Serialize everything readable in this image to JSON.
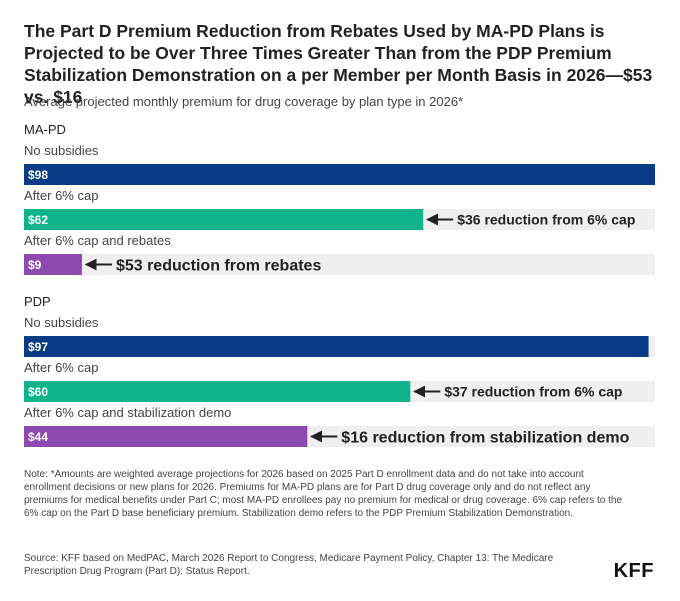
{
  "title": "The Part D Premium Reduction from Rebates Used by MA-PD Plans is Projected to be Over Three Times Greater Than from the PDP Premium Stabilization Demonstration on a per Member per Month Basis in 2026—$53 vs. $16",
  "subtitle": "Average projected monthly premium for drug coverage by plan type in 2026*",
  "colors": {
    "no_subsidies": "#0a3b85",
    "after_cap": "#11b48a",
    "after_cap_and_other": "#8d4aae",
    "track": "#efefef",
    "annotation": "#222222"
  },
  "chart_data": {
    "type": "bar",
    "orientation": "horizontal",
    "xlim": [
      0,
      98
    ],
    "value_prefix": "$",
    "groups": [
      {
        "name": "MA-PD",
        "bars": [
          {
            "label": "No subsidies",
            "value": 98,
            "color_key": "no_subsidies",
            "annotation": ""
          },
          {
            "label": "After 6% cap",
            "value": 62,
            "color_key": "after_cap",
            "annotation": "$36 reduction from 6% cap"
          },
          {
            "label": "After 6% cap and rebates",
            "value": 9,
            "color_key": "after_cap_and_other",
            "annotation": "$53 reduction from rebates"
          }
        ]
      },
      {
        "name": "PDP",
        "bars": [
          {
            "label": "No subsidies",
            "value": 97,
            "color_key": "no_subsidies",
            "annotation": ""
          },
          {
            "label": "After 6% cap",
            "value": 60,
            "color_key": "after_cap",
            "annotation": "$37 reduction from 6% cap"
          },
          {
            "label": "After 6% cap and stabilization demo",
            "value": 44,
            "color_key": "after_cap_and_other",
            "annotation": "$16 reduction from stabilization demo"
          }
        ]
      }
    ]
  },
  "note": "Note: *Amounts are weighted average projections for 2026 based on 2025 Part D enrollment data and do not take into account enrollment decisions or new plans for 2026. Premiums for MA-PD plans are for Part D drug coverage only and do not reflect any premiums for medical benefits under Part C; most MA-PD enrollees pay no premium for medical or drug coverage. 6% cap refers to the 6% cap on the Part D base beneficiary premium. Stabilization demo refers to the PDP Premium Stabilization Demonstration.",
  "source": "Source: KFF based on MedPAC, March 2026 Report to Congress, Medicare Payment Policy, Chapter 13: The Medicare Prescription Drug Program (Part D): Status Report.",
  "logo_text": "KFF"
}
